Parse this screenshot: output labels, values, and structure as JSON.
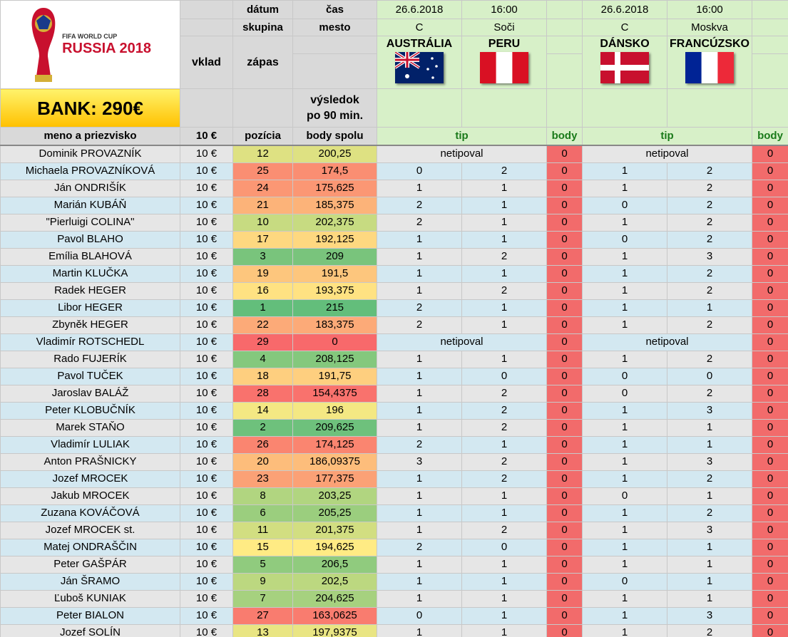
{
  "logo": {
    "line1": "FIFA WORLD CUP",
    "line2": "RUSSIA 2018"
  },
  "bank": "BANK: 290€",
  "labels": {
    "datum": "dátum",
    "cas": "čas",
    "skupina": "skupina",
    "mesto": "mesto",
    "vklad": "vklad",
    "zapas": "zápas",
    "vysledok1": "výsledok",
    "vysledok2": "po 90 min.",
    "meno": "meno a priezvisko",
    "vklad_val": "10 €",
    "pozicia": "pozícia",
    "body_spolu": "body spolu",
    "tip": "tip",
    "body": "body"
  },
  "matches": [
    {
      "date": "26.6.2018",
      "time": "16:00",
      "group": "C",
      "city": "Soči",
      "home": "AUSTRÁLIA",
      "away": "PERU",
      "home_flag": "australia-flag-icon",
      "away_flag": "peru-flag-icon"
    },
    {
      "date": "26.6.2018",
      "time": "16:00",
      "group": "C",
      "city": "Moskva",
      "home": "DÁNSKO",
      "away": "FRANCÚZSKO",
      "home_flag": "denmark-flag-icon",
      "away_flag": "france-flag-icon"
    }
  ],
  "colors": {
    "red_body": "#f26b6b",
    "rank_best": "#63be7b",
    "rank_mid": "#ffeb84",
    "rank_worst": "#f8696b"
  },
  "rows": [
    {
      "name": "Dominik PROVAZNÍK",
      "vklad": "10 €",
      "poz": "12",
      "body": "200,25",
      "t1": "netipoval",
      "t2": "",
      "b1": "0",
      "t3": "netipoval",
      "t4": "",
      "b2": "0"
    },
    {
      "name": "Michaela PROVAZNÍKOVÁ",
      "vklad": "10 €",
      "poz": "25",
      "body": "174,5",
      "t1": "0",
      "t2": "2",
      "b1": "0",
      "t3": "1",
      "t4": "2",
      "b2": "0"
    },
    {
      "name": "Ján ONDRIŠÍK",
      "vklad": "10 €",
      "poz": "24",
      "body": "175,625",
      "t1": "1",
      "t2": "1",
      "b1": "0",
      "t3": "1",
      "t4": "2",
      "b2": "0"
    },
    {
      "name": "Marián KUBÁŇ",
      "vklad": "10 €",
      "poz": "21",
      "body": "185,375",
      "t1": "2",
      "t2": "1",
      "b1": "0",
      "t3": "0",
      "t4": "2",
      "b2": "0"
    },
    {
      "name": "\"Pierluigi COLINA\"",
      "vklad": "10 €",
      "poz": "10",
      "body": "202,375",
      "t1": "2",
      "t2": "1",
      "b1": "0",
      "t3": "1",
      "t4": "2",
      "b2": "0"
    },
    {
      "name": "Pavol BLAHO",
      "vklad": "10 €",
      "poz": "17",
      "body": "192,125",
      "t1": "1",
      "t2": "1",
      "b1": "0",
      "t3": "0",
      "t4": "2",
      "b2": "0"
    },
    {
      "name": "Emília BLAHOVÁ",
      "vklad": "10 €",
      "poz": "3",
      "body": "209",
      "t1": "1",
      "t2": "2",
      "b1": "0",
      "t3": "1",
      "t4": "3",
      "b2": "0"
    },
    {
      "name": "Martin KLUČKA",
      "vklad": "10 €",
      "poz": "19",
      "body": "191,5",
      "t1": "1",
      "t2": "1",
      "b1": "0",
      "t3": "1",
      "t4": "2",
      "b2": "0"
    },
    {
      "name": "Radek HEGER",
      "vklad": "10 €",
      "poz": "16",
      "body": "193,375",
      "t1": "1",
      "t2": "2",
      "b1": "0",
      "t3": "1",
      "t4": "2",
      "b2": "0"
    },
    {
      "name": "Libor HEGER",
      "vklad": "10 €",
      "poz": "1",
      "body": "215",
      "t1": "2",
      "t2": "1",
      "b1": "0",
      "t3": "1",
      "t4": "1",
      "b2": "0"
    },
    {
      "name": "Zbyněk HEGER",
      "vklad": "10 €",
      "poz": "22",
      "body": "183,375",
      "t1": "2",
      "t2": "1",
      "b1": "0",
      "t3": "1",
      "t4": "2",
      "b2": "0"
    },
    {
      "name": "Vladimír ROTSCHEDL",
      "vklad": "10 €",
      "poz": "29",
      "body": "0",
      "t1": "netipoval",
      "t2": "",
      "b1": "0",
      "t3": "netipoval",
      "t4": "",
      "b2": "0"
    },
    {
      "name": "Rado FUJERÍK",
      "vklad": "10 €",
      "poz": "4",
      "body": "208,125",
      "t1": "1",
      "t2": "1",
      "b1": "0",
      "t3": "1",
      "t4": "2",
      "b2": "0"
    },
    {
      "name": "Pavol TUČEK",
      "vklad": "10 €",
      "poz": "18",
      "body": "191,75",
      "t1": "1",
      "t2": "0",
      "b1": "0",
      "t3": "0",
      "t4": "0",
      "b2": "0"
    },
    {
      "name": "Jaroslav BALÁŽ",
      "vklad": "10 €",
      "poz": "28",
      "body": "154,4375",
      "t1": "1",
      "t2": "2",
      "b1": "0",
      "t3": "0",
      "t4": "2",
      "b2": "0"
    },
    {
      "name": "Peter KLOBUČNÍK",
      "vklad": "10 €",
      "poz": "14",
      "body": "196",
      "t1": "1",
      "t2": "2",
      "b1": "0",
      "t3": "1",
      "t4": "3",
      "b2": "0"
    },
    {
      "name": "Marek STAŇO",
      "vklad": "10 €",
      "poz": "2",
      "body": "209,625",
      "t1": "1",
      "t2": "2",
      "b1": "0",
      "t3": "1",
      "t4": "1",
      "b2": "0"
    },
    {
      "name": "Vladimír LULIAK",
      "vklad": "10 €",
      "poz": "26",
      "body": "174,125",
      "t1": "2",
      "t2": "1",
      "b1": "0",
      "t3": "1",
      "t4": "1",
      "b2": "0"
    },
    {
      "name": "Anton PRAŠNICKY",
      "vklad": "10 €",
      "poz": "20",
      "body": "186,09375",
      "t1": "3",
      "t2": "2",
      "b1": "0",
      "t3": "1",
      "t4": "3",
      "b2": "0"
    },
    {
      "name": "Jozef MROCEK",
      "vklad": "10 €",
      "poz": "23",
      "body": "177,375",
      "t1": "1",
      "t2": "2",
      "b1": "0",
      "t3": "1",
      "t4": "2",
      "b2": "0"
    },
    {
      "name": "Jakub MROCEK",
      "vklad": "10 €",
      "poz": "8",
      "body": "203,25",
      "t1": "1",
      "t2": "1",
      "b1": "0",
      "t3": "0",
      "t4": "1",
      "b2": "0"
    },
    {
      "name": "Zuzana KOVÁČOVÁ",
      "vklad": "10 €",
      "poz": "6",
      "body": "205,25",
      "t1": "1",
      "t2": "1",
      "b1": "0",
      "t3": "1",
      "t4": "2",
      "b2": "0"
    },
    {
      "name": "Jozef MROCEK st.",
      "vklad": "10 €",
      "poz": "11",
      "body": "201,375",
      "t1": "1",
      "t2": "2",
      "b1": "0",
      "t3": "1",
      "t4": "3",
      "b2": "0"
    },
    {
      "name": "Matej ONDRAŠČIN",
      "vklad": "10 €",
      "poz": "15",
      "body": "194,625",
      "t1": "2",
      "t2": "0",
      "b1": "0",
      "t3": "1",
      "t4": "1",
      "b2": "0"
    },
    {
      "name": "Peter GAŠPÁR",
      "vklad": "10 €",
      "poz": "5",
      "body": "206,5",
      "t1": "1",
      "t2": "1",
      "b1": "0",
      "t3": "1",
      "t4": "1",
      "b2": "0"
    },
    {
      "name": "Ján ŠRAMO",
      "vklad": "10 €",
      "poz": "9",
      "body": "202,5",
      "t1": "1",
      "t2": "1",
      "b1": "0",
      "t3": "0",
      "t4": "1",
      "b2": "0"
    },
    {
      "name": "Ľuboš KUNIAK",
      "vklad": "10 €",
      "poz": "7",
      "body": "204,625",
      "t1": "1",
      "t2": "1",
      "b1": "0",
      "t3": "1",
      "t4": "1",
      "b2": "0"
    },
    {
      "name": "Peter BIALON",
      "vklad": "10 €",
      "poz": "27",
      "body": "163,0625",
      "t1": "0",
      "t2": "1",
      "b1": "0",
      "t3": "1",
      "t4": "3",
      "b2": "0"
    },
    {
      "name": "Jozef SOLÍN",
      "vklad": "10 €",
      "poz": "13",
      "body": "197,9375",
      "t1": "1",
      "t2": "1",
      "b1": "0",
      "t3": "1",
      "t4": "2",
      "b2": "0"
    }
  ]
}
